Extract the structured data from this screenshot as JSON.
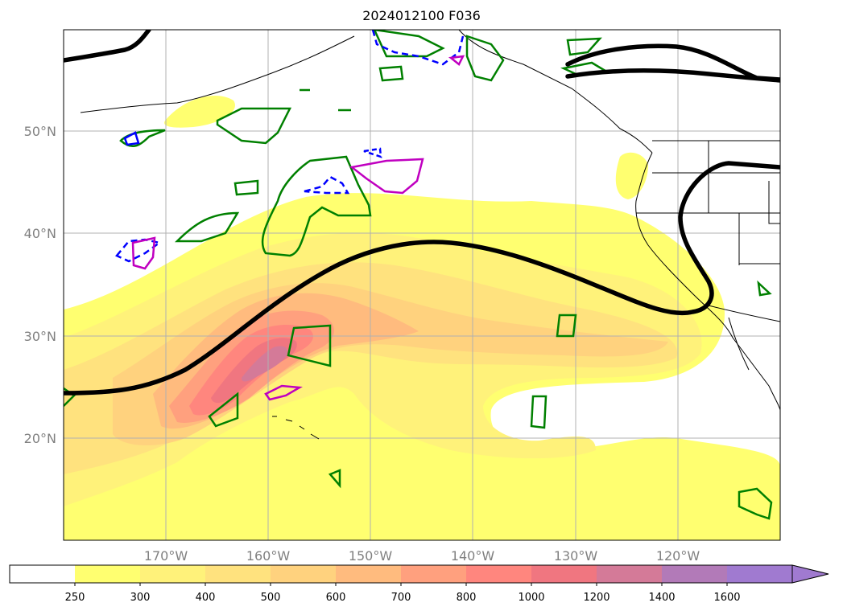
{
  "title": "2024012100 F036",
  "map": {
    "lat_labels": [
      "50°N",
      "40°N",
      "30°N",
      "20°N"
    ],
    "lon_labels": [
      "170°W",
      "160°W",
      "150°W",
      "140°W",
      "130°W",
      "120°W"
    ],
    "grid": true,
    "thick_contour_color": "#000000",
    "green_contour_color": "#008000",
    "blue_contour_color": "#0000ff",
    "magenta_contour_color": "#c000c0"
  },
  "colorbar": {
    "ticks": [
      "250",
      "300",
      "400",
      "500",
      "600",
      "700",
      "800",
      "1000",
      "1200",
      "1400",
      "1600"
    ],
    "colors": [
      "#ffffff",
      "#ffff70",
      "#fff27a",
      "#ffe27e",
      "#ffd27e",
      "#ffbb7e",
      "#ffa07e",
      "#ff867e",
      "#f07680",
      "#d47a98",
      "#b27ab8",
      "#a07ad0"
    ],
    "extend": "max"
  }
}
